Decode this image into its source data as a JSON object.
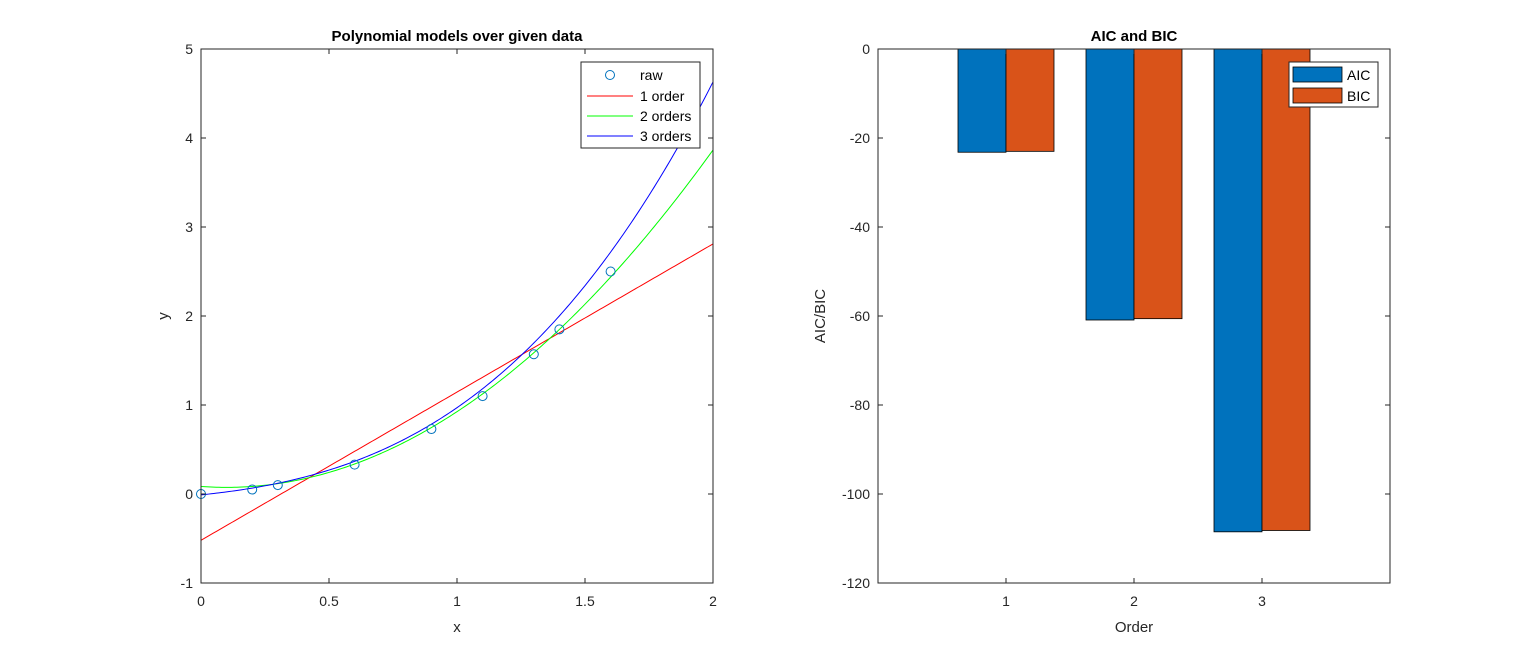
{
  "chart_data": [
    {
      "type": "scatter+line",
      "title": "Polynomial models over given data",
      "xlabel": "x",
      "ylabel": "y",
      "xlim": [
        0,
        2
      ],
      "ylim": [
        -1,
        5
      ],
      "xticks": [
        0,
        0.5,
        1,
        1.5,
        2
      ],
      "xtick_labels": [
        "0",
        "0.5",
        "1",
        "1.5",
        "2"
      ],
      "yticks": [
        -1,
        0,
        1,
        2,
        3,
        4,
        5
      ],
      "ytick_labels": [
        "-1",
        "0",
        "1",
        "2",
        "3",
        "4",
        "5"
      ],
      "legend_position": "top-right",
      "raw": {
        "name": "raw",
        "color": "#0072BD",
        "x": [
          0,
          0.2,
          0.3,
          0.6,
          0.9,
          1.1,
          1.3,
          1.4,
          1.6
        ],
        "y": [
          0,
          0.05,
          0.1,
          0.33,
          0.73,
          1.1,
          1.57,
          1.85,
          2.5
        ]
      },
      "fits": [
        {
          "name": "1 order",
          "color": "#FF0000",
          "coef": [
            -0.52,
            1.665
          ]
        },
        {
          "name": "2 orders",
          "color": "#00FF00",
          "coef": [
            0.085,
            -0.21,
            1.05
          ]
        },
        {
          "name": "3 orders",
          "color": "#0000FF",
          "coef": [
            -0.01,
            0.3,
            0.35,
            0.33
          ]
        }
      ]
    },
    {
      "type": "bar",
      "title": "AIC and BIC",
      "xlabel": "Order",
      "ylabel": "AIC/BIC",
      "categories": [
        "1",
        "2",
        "3"
      ],
      "ylim": [
        -120,
        0
      ],
      "yticks": [
        0,
        -20,
        -40,
        -60,
        -80,
        -100,
        -120
      ],
      "ytick_labels": [
        "0",
        "-20",
        "-40",
        "-60",
        "-80",
        "-100",
        "-120"
      ],
      "legend_position": "top-right",
      "series": [
        {
          "name": "AIC",
          "color": "#0072BD",
          "values": [
            -23.2,
            -60.9,
            -108.5
          ]
        },
        {
          "name": "BIC",
          "color": "#D95319",
          "values": [
            -23.0,
            -60.6,
            -108.2
          ]
        }
      ]
    }
  ]
}
